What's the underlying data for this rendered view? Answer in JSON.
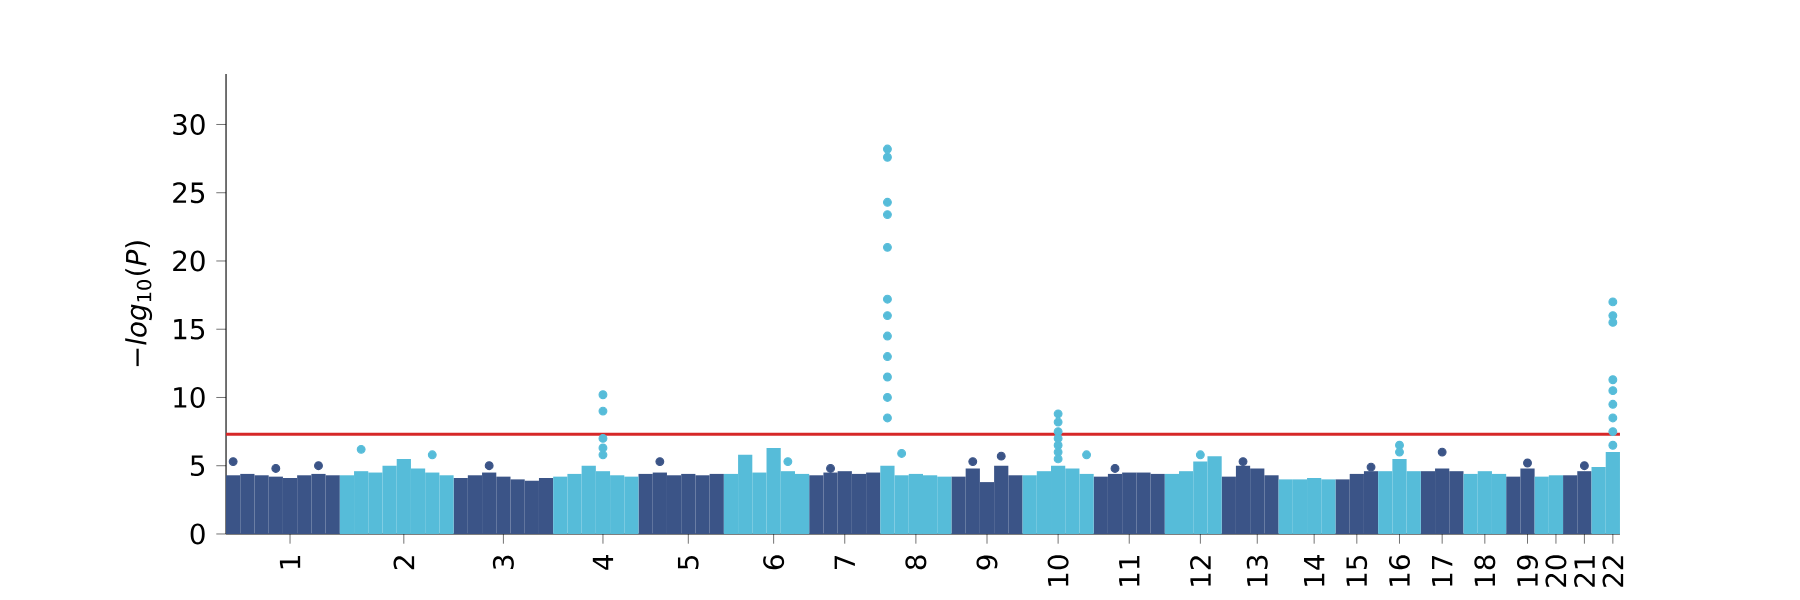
{
  "chart_data": {
    "type": "scatter",
    "ylabel": "−*log*$_{10}$(*P*)",
    "ylim": [
      0,
      33.7
    ],
    "yticks": [
      0,
      5,
      10,
      15,
      20,
      25,
      30
    ],
    "categories": [
      null,
      null,
      null,
      null,
      "1",
      null,
      null,
      null,
      null,
      null,
      null,
      null,
      "2",
      null,
      null,
      null,
      null,
      null,
      null,
      "3",
      null,
      null,
      null,
      null,
      null,
      null,
      "4",
      null,
      null,
      null,
      null,
      null,
      "5",
      null,
      null,
      null,
      null,
      null,
      "6",
      null,
      null,
      null,
      null,
      "7",
      null,
      null,
      null,
      null,
      "8",
      null,
      null,
      null,
      null,
      "9",
      null,
      null,
      null,
      null,
      "10",
      null,
      null,
      null,
      null,
      "11",
      null,
      null,
      null,
      null,
      "12",
      null,
      null,
      null,
      "13",
      null,
      null,
      null,
      "14",
      null,
      null,
      "15",
      null,
      null,
      "16",
      null,
      null,
      "17",
      null,
      null,
      "18",
      null,
      null,
      "19",
      null,
      "20",
      null,
      "21",
      null,
      "22"
    ],
    "grid": false,
    "marker": "circle",
    "series": [
      {
        "type": "bar",
        "color": "#3b5487",
        "values": [
          4.3,
          4.4,
          4.3,
          4.2,
          4.1,
          4.3,
          4.4,
          4.3,
          null,
          null,
          null,
          null,
          null,
          null,
          null,
          null,
          4.1,
          4.3,
          4.5,
          4.2,
          4.0,
          3.9,
          4.1,
          null,
          null,
          null,
          null,
          null,
          null,
          4.4,
          4.5,
          4.3,
          4.4,
          4.3,
          4.4,
          null,
          null,
          null,
          null,
          null,
          null,
          4.3,
          4.5,
          4.6,
          4.4,
          4.5,
          null,
          null,
          null,
          null,
          null,
          4.2,
          4.8,
          3.8,
          5.0,
          4.3,
          null,
          null,
          null,
          null,
          null,
          4.2,
          4.4,
          4.5,
          4.5,
          4.4,
          null,
          null,
          null,
          null,
          4.2,
          5.0,
          4.8,
          4.3,
          null,
          null,
          null,
          null,
          4.0,
          4.4,
          4.6,
          null,
          null,
          null,
          4.6,
          4.8,
          4.6,
          null,
          null,
          null,
          4.2,
          4.8,
          null,
          null,
          4.3,
          4.6,
          null,
          null
        ]
      },
      {
        "type": "bar",
        "color": "#56bcd9",
        "values": [
          null,
          null,
          null,
          null,
          null,
          null,
          null,
          null,
          4.3,
          4.6,
          4.5,
          5.0,
          5.5,
          4.8,
          4.5,
          4.3,
          null,
          null,
          null,
          null,
          null,
          null,
          null,
          4.2,
          4.4,
          5.0,
          4.6,
          4.3,
          4.2,
          null,
          null,
          null,
          null,
          null,
          null,
          4.4,
          5.8,
          4.5,
          6.3,
          4.6,
          4.4,
          null,
          null,
          null,
          null,
          null,
          5.0,
          4.3,
          4.4,
          4.3,
          4.2,
          null,
          null,
          null,
          null,
          null,
          4.3,
          4.6,
          5.0,
          4.8,
          4.4,
          null,
          null,
          null,
          null,
          null,
          4.4,
          4.6,
          5.3,
          5.7,
          null,
          null,
          null,
          null,
          4.0,
          4.0,
          4.1,
          4.0,
          null,
          null,
          null,
          4.6,
          5.5,
          4.6,
          null,
          null,
          null,
          4.4,
          4.6,
          4.4,
          null,
          null,
          4.2,
          4.3,
          null,
          null,
          4.9,
          6.0
        ]
      },
      {
        "color": "#3b5487",
        "values": [
          5.3,
          null,
          null,
          4.8,
          null,
          null,
          5.0,
          null,
          null,
          null,
          null,
          null,
          null,
          null,
          null,
          null,
          null,
          null,
          5.0,
          null,
          null,
          null,
          null,
          null,
          null,
          null,
          null,
          null,
          null,
          null,
          5.3,
          null,
          null,
          null,
          null,
          null,
          null,
          null,
          null,
          null,
          null,
          null,
          4.8,
          null,
          null,
          null,
          null,
          null,
          null,
          null,
          null,
          null,
          5.3,
          null,
          5.7,
          null,
          null,
          null,
          null,
          null,
          null,
          null,
          4.8,
          null,
          null,
          null,
          null,
          null,
          null,
          null,
          null,
          5.3,
          null,
          null,
          null,
          null,
          null,
          null,
          null,
          null,
          4.9,
          null,
          null,
          null,
          null,
          6.0,
          null,
          null,
          null,
          null,
          null,
          5.2,
          null,
          null,
          null,
          5.0,
          null,
          null
        ]
      },
      {
        "color": "#56bcd9",
        "values": [
          null,
          null,
          null,
          null,
          null,
          null,
          null,
          null,
          null,
          6.2,
          null,
          null,
          null,
          null,
          5.8,
          null,
          null,
          null,
          null,
          null,
          null,
          null,
          null,
          null,
          null,
          null,
          10.2,
          null,
          null,
          null,
          null,
          null,
          null,
          null,
          null,
          null,
          null,
          null,
          null,
          5.3,
          null,
          null,
          null,
          null,
          null,
          null,
          28.2,
          5.9,
          null,
          null,
          null,
          null,
          null,
          null,
          null,
          null,
          null,
          null,
          8.8,
          null,
          5.8,
          null,
          null,
          null,
          null,
          null,
          null,
          null,
          5.8,
          null,
          null,
          null,
          null,
          null,
          null,
          null,
          null,
          null,
          null,
          null,
          null,
          null,
          6.5,
          null,
          null,
          null,
          null,
          null,
          null,
          null,
          null,
          null,
          null,
          null,
          null,
          null,
          null,
          17.0
        ]
      },
      {
        "color": "#56bcd9",
        "values": [
          null,
          null,
          null,
          null,
          null,
          null,
          null,
          null,
          null,
          null,
          null,
          null,
          null,
          null,
          null,
          null,
          null,
          null,
          null,
          null,
          null,
          null,
          null,
          null,
          null,
          null,
          9.0,
          null,
          null,
          null,
          null,
          null,
          null,
          null,
          null,
          null,
          null,
          null,
          null,
          null,
          null,
          null,
          null,
          null,
          null,
          null,
          27.6,
          null,
          null,
          null,
          null,
          null,
          null,
          null,
          null,
          null,
          null,
          null,
          8.2,
          null,
          null,
          null,
          null,
          null,
          null,
          null,
          null,
          null,
          null,
          null,
          null,
          null,
          null,
          null,
          null,
          null,
          null,
          null,
          null,
          null,
          null,
          null,
          6.0,
          null,
          null,
          null,
          null,
          null,
          null,
          null,
          null,
          null,
          null,
          null,
          null,
          null,
          null,
          16.0
        ]
      },
      {
        "color": "#56bcd9",
        "values": [
          null,
          null,
          null,
          null,
          null,
          null,
          null,
          null,
          null,
          null,
          null,
          null,
          null,
          null,
          null,
          null,
          null,
          null,
          null,
          null,
          null,
          null,
          null,
          null,
          null,
          null,
          7.0,
          null,
          null,
          null,
          null,
          null,
          null,
          null,
          null,
          null,
          null,
          null,
          null,
          null,
          null,
          null,
          null,
          null,
          null,
          null,
          24.3,
          null,
          null,
          null,
          null,
          null,
          null,
          null,
          null,
          null,
          null,
          null,
          7.5,
          null,
          null,
          null,
          null,
          null,
          null,
          null,
          null,
          null,
          null,
          null,
          null,
          null,
          null,
          null,
          null,
          null,
          null,
          null,
          null,
          null,
          null,
          null,
          null,
          null,
          null,
          null,
          null,
          null,
          null,
          null,
          null,
          null,
          null,
          null,
          null,
          null,
          null,
          15.5
        ]
      },
      {
        "color": "#56bcd9",
        "values": [
          null,
          null,
          null,
          null,
          null,
          null,
          null,
          null,
          null,
          null,
          null,
          null,
          null,
          null,
          null,
          null,
          null,
          null,
          null,
          null,
          null,
          null,
          null,
          null,
          null,
          null,
          6.3,
          null,
          null,
          null,
          null,
          null,
          null,
          null,
          null,
          null,
          null,
          null,
          null,
          null,
          null,
          null,
          null,
          null,
          null,
          null,
          23.4,
          null,
          null,
          null,
          null,
          null,
          null,
          null,
          null,
          null,
          null,
          null,
          7.0,
          null,
          null,
          null,
          null,
          null,
          null,
          null,
          null,
          null,
          null,
          null,
          null,
          null,
          null,
          null,
          null,
          null,
          null,
          null,
          null,
          null,
          null,
          null,
          null,
          null,
          null,
          null,
          null,
          null,
          null,
          null,
          null,
          null,
          null,
          null,
          null,
          null,
          null,
          11.3
        ]
      },
      {
        "color": "#56bcd9",
        "values": [
          null,
          null,
          null,
          null,
          null,
          null,
          null,
          null,
          null,
          null,
          null,
          null,
          null,
          null,
          null,
          null,
          null,
          null,
          null,
          null,
          null,
          null,
          null,
          null,
          null,
          null,
          5.8,
          null,
          null,
          null,
          null,
          null,
          null,
          null,
          null,
          null,
          null,
          null,
          null,
          null,
          null,
          null,
          null,
          null,
          null,
          null,
          21.0,
          null,
          null,
          null,
          null,
          null,
          null,
          null,
          null,
          null,
          null,
          null,
          6.5,
          null,
          null,
          null,
          null,
          null,
          null,
          null,
          null,
          null,
          null,
          null,
          null,
          null,
          null,
          null,
          null,
          null,
          null,
          null,
          null,
          null,
          null,
          null,
          null,
          null,
          null,
          null,
          null,
          null,
          null,
          null,
          null,
          null,
          null,
          null,
          null,
          null,
          null,
          10.5
        ]
      },
      {
        "color": "#56bcd9",
        "values": [
          null,
          null,
          null,
          null,
          null,
          null,
          null,
          null,
          null,
          null,
          null,
          null,
          null,
          null,
          null,
          null,
          null,
          null,
          null,
          null,
          null,
          null,
          null,
          null,
          null,
          null,
          null,
          null,
          null,
          null,
          null,
          null,
          null,
          null,
          null,
          null,
          null,
          null,
          null,
          null,
          null,
          null,
          null,
          null,
          null,
          null,
          17.2,
          null,
          null,
          null,
          null,
          null,
          null,
          null,
          null,
          null,
          null,
          null,
          6.0,
          null,
          null,
          null,
          null,
          null,
          null,
          null,
          null,
          null,
          null,
          null,
          null,
          null,
          null,
          null,
          null,
          null,
          null,
          null,
          null,
          null,
          null,
          null,
          null,
          null,
          null,
          null,
          null,
          null,
          null,
          null,
          null,
          null,
          null,
          null,
          null,
          null,
          null,
          9.5
        ]
      },
      {
        "color": "#56bcd9",
        "values": [
          null,
          null,
          null,
          null,
          null,
          null,
          null,
          null,
          null,
          null,
          null,
          null,
          null,
          null,
          null,
          null,
          null,
          null,
          null,
          null,
          null,
          null,
          null,
          null,
          null,
          null,
          null,
          null,
          null,
          null,
          null,
          null,
          null,
          null,
          null,
          null,
          null,
          null,
          null,
          null,
          null,
          null,
          null,
          null,
          null,
          null,
          16.0,
          null,
          null,
          null,
          null,
          null,
          null,
          null,
          null,
          null,
          null,
          null,
          5.5,
          null,
          null,
          null,
          null,
          null,
          null,
          null,
          null,
          null,
          null,
          null,
          null,
          null,
          null,
          null,
          null,
          null,
          null,
          null,
          null,
          null,
          null,
          null,
          null,
          null,
          null,
          null,
          null,
          null,
          null,
          null,
          null,
          null,
          null,
          null,
          null,
          null,
          null,
          8.5
        ]
      },
      {
        "color": "#56bcd9",
        "values": [
          null,
          null,
          null,
          null,
          null,
          null,
          null,
          null,
          null,
          null,
          null,
          null,
          null,
          null,
          null,
          null,
          null,
          null,
          null,
          null,
          null,
          null,
          null,
          null,
          null,
          null,
          null,
          null,
          null,
          null,
          null,
          null,
          null,
          null,
          null,
          null,
          null,
          null,
          null,
          null,
          null,
          null,
          null,
          null,
          null,
          null,
          14.5,
          null,
          null,
          null,
          null,
          null,
          null,
          null,
          null,
          null,
          null,
          null,
          null,
          null,
          null,
          null,
          null,
          null,
          null,
          null,
          null,
          null,
          null,
          null,
          null,
          null,
          null,
          null,
          null,
          null,
          null,
          null,
          null,
          null,
          null,
          null,
          null,
          null,
          null,
          null,
          null,
          null,
          null,
          null,
          null,
          null,
          null,
          null,
          null,
          null,
          null,
          7.5
        ]
      },
      {
        "color": "#56bcd9",
        "values": [
          null,
          null,
          null,
          null,
          null,
          null,
          null,
          null,
          null,
          null,
          null,
          null,
          null,
          null,
          null,
          null,
          null,
          null,
          null,
          null,
          null,
          null,
          null,
          null,
          null,
          null,
          null,
          null,
          null,
          null,
          null,
          null,
          null,
          null,
          null,
          null,
          null,
          null,
          null,
          null,
          null,
          null,
          null,
          null,
          null,
          null,
          13.0,
          null,
          null,
          null,
          null,
          null,
          null,
          null,
          null,
          null,
          null,
          null,
          null,
          null,
          null,
          null,
          null,
          null,
          null,
          null,
          null,
          null,
          null,
          null,
          null,
          null,
          null,
          null,
          null,
          null,
          null,
          null,
          null,
          null,
          null,
          null,
          null,
          null,
          null,
          null,
          null,
          null,
          null,
          null,
          null,
          null,
          null,
          null,
          null,
          null,
          null,
          6.5
        ]
      },
      {
        "color": "#56bcd9",
        "values": [
          null,
          null,
          null,
          null,
          null,
          null,
          null,
          null,
          null,
          null,
          null,
          null,
          null,
          null,
          null,
          null,
          null,
          null,
          null,
          null,
          null,
          null,
          null,
          null,
          null,
          null,
          null,
          null,
          null,
          null,
          null,
          null,
          null,
          null,
          null,
          null,
          null,
          null,
          null,
          null,
          null,
          null,
          null,
          null,
          null,
          null,
          11.5,
          null,
          null,
          null,
          null,
          null,
          null,
          null,
          null,
          null,
          null,
          null,
          null,
          null,
          null,
          null,
          null,
          null,
          null,
          null,
          null,
          null,
          null,
          null,
          null,
          null,
          null,
          null,
          null,
          null,
          null,
          null,
          null,
          null,
          null,
          null,
          null,
          null,
          null,
          null,
          null,
          null,
          null,
          null,
          null,
          null,
          null,
          null,
          null,
          null,
          null,
          null
        ]
      },
      {
        "color": "#56bcd9",
        "values": [
          null,
          null,
          null,
          null,
          null,
          null,
          null,
          null,
          null,
          null,
          null,
          null,
          null,
          null,
          null,
          null,
          null,
          null,
          null,
          null,
          null,
          null,
          null,
          null,
          null,
          null,
          null,
          null,
          null,
          null,
          null,
          null,
          null,
          null,
          null,
          null,
          null,
          null,
          null,
          null,
          null,
          null,
          null,
          null,
          null,
          null,
          10.0,
          null,
          null,
          null,
          null,
          null,
          null,
          null,
          null,
          null,
          null,
          null,
          null,
          null,
          null,
          null,
          null,
          null,
          null,
          null,
          null,
          null,
          null,
          null,
          null,
          null,
          null,
          null,
          null,
          null,
          null,
          null,
          null,
          null,
          null,
          null,
          null,
          null,
          null,
          null,
          null,
          null,
          null,
          null,
          null,
          null,
          null,
          null,
          null,
          null,
          null,
          null
        ]
      },
      {
        "color": "#56bcd9",
        "values": [
          null,
          null,
          null,
          null,
          null,
          null,
          null,
          null,
          null,
          null,
          null,
          null,
          null,
          null,
          null,
          null,
          null,
          null,
          null,
          null,
          null,
          null,
          null,
          null,
          null,
          null,
          null,
          null,
          null,
          null,
          null,
          null,
          null,
          null,
          null,
          null,
          null,
          null,
          null,
          null,
          null,
          null,
          null,
          null,
          null,
          null,
          8.5,
          null,
          null,
          null,
          null,
          null,
          null,
          null,
          null,
          null,
          null,
          null,
          null,
          null,
          null,
          null,
          null,
          null,
          null,
          null,
          null,
          null,
          null,
          null,
          null,
          null,
          null,
          null,
          null,
          null,
          null,
          null,
          null,
          null,
          null,
          null,
          null,
          null,
          null,
          null,
          null,
          null,
          null,
          null,
          null,
          null,
          null,
          null,
          null,
          null,
          null,
          null
        ]
      }
    ],
    "ref_lines": [
      {
        "axis": "y",
        "value": 7.3,
        "color": "#d62728"
      }
    ]
  }
}
